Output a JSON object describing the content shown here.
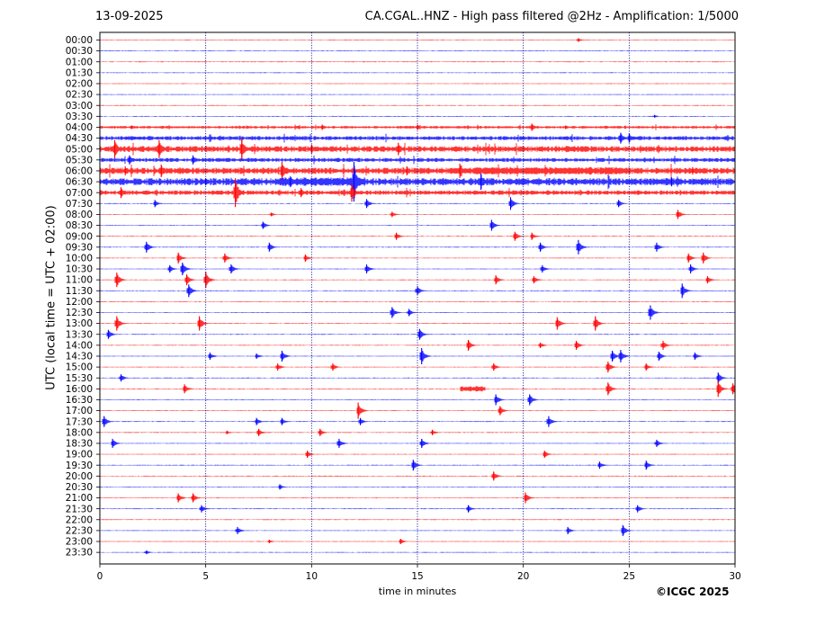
{
  "header": {
    "date": "13-09-2025",
    "title": "CA.CGAL..HNZ - High pass filtered @2Hz - Amplification: 1/5000"
  },
  "footer": {
    "copyright": "©ICGC 2025"
  },
  "chart_data": {
    "type": "line",
    "title": "CA.CGAL..HNZ - High pass filtered @2Hz - Amplification: 1/5000",
    "xlabel": "time in minutes",
    "ylabel": "UTC (local time = UTC + 02:00)",
    "xlim": [
      0,
      30
    ],
    "xticks": [
      0,
      5,
      10,
      15,
      20,
      25,
      30
    ],
    "grid": "vertical dotted at 5-minute intervals",
    "trace_colors": [
      "#ff0000",
      "#0000ff"
    ],
    "grid_color": "#00008b",
    "rows": [
      "00:00",
      "00:30",
      "01:00",
      "01:30",
      "02:00",
      "02:30",
      "03:00",
      "03:30",
      "04:00",
      "04:30",
      "05:00",
      "05:30",
      "06:00",
      "06:30",
      "07:00",
      "07:30",
      "08:00",
      "08:30",
      "09:00",
      "09:30",
      "10:00",
      "10:30",
      "11:00",
      "11:30",
      "12:00",
      "12:30",
      "13:00",
      "13:30",
      "14:00",
      "14:30",
      "15:00",
      "15:30",
      "16:00",
      "16:30",
      "17:00",
      "17:30",
      "18:00",
      "18:30",
      "19:00",
      "19:30",
      "20:00",
      "20:30",
      "21:00",
      "21:30",
      "22:00",
      "22:30",
      "23:00",
      "23:30"
    ],
    "noisy_rows": [
      {
        "row": 8,
        "level": 1.2
      },
      {
        "row": 9,
        "level": 1.8
      },
      {
        "row": 10,
        "level": 2.6
      },
      {
        "row": 11,
        "level": 1.8
      },
      {
        "row": 12,
        "level": 2.8
      },
      {
        "row": 13,
        "level": 3.2
      },
      {
        "row": 14,
        "level": 2.0
      }
    ],
    "bursts": [
      {
        "row": 12,
        "start": 17.0,
        "end": 25.0,
        "amp": 3.5
      },
      {
        "row": 13,
        "start": 8.5,
        "end": 12.5,
        "amp": 4.0
      },
      {
        "row": 32,
        "start": 17.0,
        "end": 18.2,
        "amp": 2.5
      }
    ],
    "events": [
      {
        "row": 0,
        "t": 22.6,
        "amp": 2
      },
      {
        "row": 7,
        "t": 26.2,
        "amp": 1.5
      },
      {
        "row": 8,
        "t": 1.5,
        "amp": 2
      },
      {
        "row": 8,
        "t": 10.5,
        "amp": 3
      },
      {
        "row": 8,
        "t": 15.0,
        "amp": 3
      },
      {
        "row": 8,
        "t": 20.4,
        "amp": 4
      },
      {
        "row": 8,
        "t": 22.0,
        "amp": 2
      },
      {
        "row": 9,
        "t": 24.6,
        "amp": 6
      },
      {
        "row": 9,
        "t": 25.0,
        "amp": 5
      },
      {
        "row": 10,
        "t": 0.7,
        "amp": 10
      },
      {
        "row": 10,
        "t": 2.8,
        "amp": 10
      },
      {
        "row": 10,
        "t": 6.7,
        "amp": 12
      },
      {
        "row": 10,
        "t": 10.0,
        "amp": 5
      },
      {
        "row": 10,
        "t": 14.1,
        "amp": 7
      },
      {
        "row": 11,
        "t": 1.4,
        "amp": 5
      },
      {
        "row": 11,
        "t": 4.4,
        "amp": 5
      },
      {
        "row": 12,
        "t": 1.2,
        "amp": 5
      },
      {
        "row": 12,
        "t": 2.9,
        "amp": 7
      },
      {
        "row": 12,
        "t": 8.6,
        "amp": 10
      },
      {
        "row": 12,
        "t": 14.5,
        "amp": 5
      },
      {
        "row": 12,
        "t": 17.0,
        "amp": 8
      },
      {
        "row": 12,
        "t": 28.0,
        "amp": 4
      },
      {
        "row": 13,
        "t": 5.0,
        "amp": 4
      },
      {
        "row": 13,
        "t": 9.0,
        "amp": 6
      },
      {
        "row": 13,
        "t": 12.0,
        "amp": 22
      },
      {
        "row": 13,
        "t": 18.0,
        "amp": 9
      },
      {
        "row": 13,
        "t": 27.0,
        "amp": 5
      },
      {
        "row": 14,
        "t": 1.0,
        "amp": 6
      },
      {
        "row": 14,
        "t": 6.4,
        "amp": 16
      },
      {
        "row": 14,
        "t": 9.5,
        "amp": 5
      },
      {
        "row": 14,
        "t": 11.9,
        "amp": 10
      },
      {
        "row": 15,
        "t": 2.6,
        "amp": 4
      },
      {
        "row": 15,
        "t": 12.6,
        "amp": 5
      },
      {
        "row": 15,
        "t": 19.4,
        "amp": 7
      },
      {
        "row": 15,
        "t": 24.5,
        "amp": 4
      },
      {
        "row": 16,
        "t": 8.1,
        "amp": 2
      },
      {
        "row": 16,
        "t": 13.8,
        "amp": 3
      },
      {
        "row": 16,
        "t": 27.3,
        "amp": 5
      },
      {
        "row": 17,
        "t": 7.7,
        "amp": 4
      },
      {
        "row": 17,
        "t": 18.5,
        "amp": 6
      },
      {
        "row": 18,
        "t": 14.0,
        "amp": 4
      },
      {
        "row": 18,
        "t": 19.6,
        "amp": 5
      },
      {
        "row": 18,
        "t": 20.4,
        "amp": 4
      },
      {
        "row": 19,
        "t": 2.2,
        "amp": 6
      },
      {
        "row": 19,
        "t": 8.0,
        "amp": 5
      },
      {
        "row": 19,
        "t": 20.8,
        "amp": 5
      },
      {
        "row": 19,
        "t": 22.6,
        "amp": 8
      },
      {
        "row": 19,
        "t": 26.3,
        "amp": 5
      },
      {
        "row": 20,
        "t": 3.7,
        "amp": 6
      },
      {
        "row": 20,
        "t": 5.9,
        "amp": 5
      },
      {
        "row": 20,
        "t": 9.7,
        "amp": 4
      },
      {
        "row": 20,
        "t": 27.8,
        "amp": 5
      },
      {
        "row": 20,
        "t": 28.5,
        "amp": 6
      },
      {
        "row": 21,
        "t": 3.3,
        "amp": 4
      },
      {
        "row": 21,
        "t": 3.9,
        "amp": 7
      },
      {
        "row": 21,
        "t": 6.2,
        "amp": 5
      },
      {
        "row": 21,
        "t": 12.6,
        "amp": 5
      },
      {
        "row": 21,
        "t": 20.9,
        "amp": 4
      },
      {
        "row": 21,
        "t": 27.9,
        "amp": 5
      },
      {
        "row": 22,
        "t": 0.8,
        "amp": 8
      },
      {
        "row": 22,
        "t": 4.1,
        "amp": 6
      },
      {
        "row": 22,
        "t": 5.0,
        "amp": 9
      },
      {
        "row": 22,
        "t": 18.7,
        "amp": 5
      },
      {
        "row": 22,
        "t": 20.5,
        "amp": 4
      },
      {
        "row": 22,
        "t": 28.7,
        "amp": 4
      },
      {
        "row": 23,
        "t": 4.2,
        "amp": 7
      },
      {
        "row": 23,
        "t": 15.0,
        "amp": 5
      },
      {
        "row": 23,
        "t": 27.5,
        "amp": 8
      },
      {
        "row": 25,
        "t": 13.8,
        "amp": 6
      },
      {
        "row": 25,
        "t": 14.6,
        "amp": 4
      },
      {
        "row": 25,
        "t": 26.0,
        "amp": 8
      },
      {
        "row": 26,
        "t": 0.8,
        "amp": 8
      },
      {
        "row": 26,
        "t": 4.7,
        "amp": 8
      },
      {
        "row": 26,
        "t": 21.6,
        "amp": 7
      },
      {
        "row": 26,
        "t": 23.4,
        "amp": 8
      },
      {
        "row": 27,
        "t": 0.4,
        "amp": 5
      },
      {
        "row": 27,
        "t": 15.1,
        "amp": 6
      },
      {
        "row": 28,
        "t": 17.4,
        "amp": 6
      },
      {
        "row": 28,
        "t": 20.8,
        "amp": 3
      },
      {
        "row": 28,
        "t": 22.5,
        "amp": 5
      },
      {
        "row": 28,
        "t": 26.6,
        "amp": 5
      },
      {
        "row": 29,
        "t": 5.2,
        "amp": 4
      },
      {
        "row": 29,
        "t": 7.4,
        "amp": 3
      },
      {
        "row": 29,
        "t": 8.6,
        "amp": 6
      },
      {
        "row": 29,
        "t": 15.2,
        "amp": 9
      },
      {
        "row": 29,
        "t": 24.2,
        "amp": 6
      },
      {
        "row": 29,
        "t": 24.6,
        "amp": 7
      },
      {
        "row": 29,
        "t": 26.4,
        "amp": 5
      },
      {
        "row": 29,
        "t": 28.1,
        "amp": 4
      },
      {
        "row": 30,
        "t": 8.4,
        "amp": 4
      },
      {
        "row": 30,
        "t": 11.0,
        "amp": 4
      },
      {
        "row": 30,
        "t": 18.6,
        "amp": 4
      },
      {
        "row": 30,
        "t": 24.0,
        "amp": 6
      },
      {
        "row": 30,
        "t": 25.8,
        "amp": 4
      },
      {
        "row": 31,
        "t": 1.0,
        "amp": 4
      },
      {
        "row": 31,
        "t": 29.2,
        "amp": 6
      },
      {
        "row": 32,
        "t": 4.0,
        "amp": 5
      },
      {
        "row": 32,
        "t": 24.0,
        "amp": 7
      },
      {
        "row": 32,
        "t": 29.2,
        "amp": 9
      },
      {
        "row": 32,
        "t": 29.9,
        "amp": 6
      },
      {
        "row": 33,
        "t": 18.7,
        "amp": 6
      },
      {
        "row": 33,
        "t": 20.3,
        "amp": 6
      },
      {
        "row": 34,
        "t": 12.2,
        "amp": 9
      },
      {
        "row": 34,
        "t": 18.9,
        "amp": 5
      },
      {
        "row": 35,
        "t": 0.2,
        "amp": 6
      },
      {
        "row": 35,
        "t": 7.4,
        "amp": 4
      },
      {
        "row": 35,
        "t": 8.6,
        "amp": 4
      },
      {
        "row": 35,
        "t": 12.3,
        "amp": 4
      },
      {
        "row": 35,
        "t": 21.2,
        "amp": 6
      },
      {
        "row": 36,
        "t": 6.0,
        "amp": 2
      },
      {
        "row": 36,
        "t": 7.5,
        "amp": 4
      },
      {
        "row": 36,
        "t": 10.4,
        "amp": 4
      },
      {
        "row": 36,
        "t": 15.7,
        "amp": 3
      },
      {
        "row": 37,
        "t": 0.6,
        "amp": 5
      },
      {
        "row": 37,
        "t": 11.3,
        "amp": 5
      },
      {
        "row": 37,
        "t": 15.2,
        "amp": 5
      },
      {
        "row": 37,
        "t": 26.3,
        "amp": 4
      },
      {
        "row": 38,
        "t": 9.8,
        "amp": 4
      },
      {
        "row": 38,
        "t": 21.0,
        "amp": 4
      },
      {
        "row": 39,
        "t": 14.8,
        "amp": 6
      },
      {
        "row": 39,
        "t": 23.6,
        "amp": 4
      },
      {
        "row": 39,
        "t": 25.8,
        "amp": 5
      },
      {
        "row": 40,
        "t": 18.6,
        "amp": 5
      },
      {
        "row": 41,
        "t": 8.5,
        "amp": 3
      },
      {
        "row": 42,
        "t": 3.7,
        "amp": 5
      },
      {
        "row": 42,
        "t": 4.4,
        "amp": 5
      },
      {
        "row": 42,
        "t": 20.1,
        "amp": 6
      },
      {
        "row": 43,
        "t": 4.8,
        "amp": 4
      },
      {
        "row": 43,
        "t": 17.4,
        "amp": 4
      },
      {
        "row": 43,
        "t": 25.4,
        "amp": 4
      },
      {
        "row": 45,
        "t": 6.5,
        "amp": 4
      },
      {
        "row": 45,
        "t": 22.1,
        "amp": 4
      },
      {
        "row": 45,
        "t": 24.7,
        "amp": 6
      },
      {
        "row": 46,
        "t": 8.0,
        "amp": 2
      },
      {
        "row": 46,
        "t": 14.2,
        "amp": 3
      },
      {
        "row": 47,
        "t": 2.2,
        "amp": 2
      }
    ]
  }
}
